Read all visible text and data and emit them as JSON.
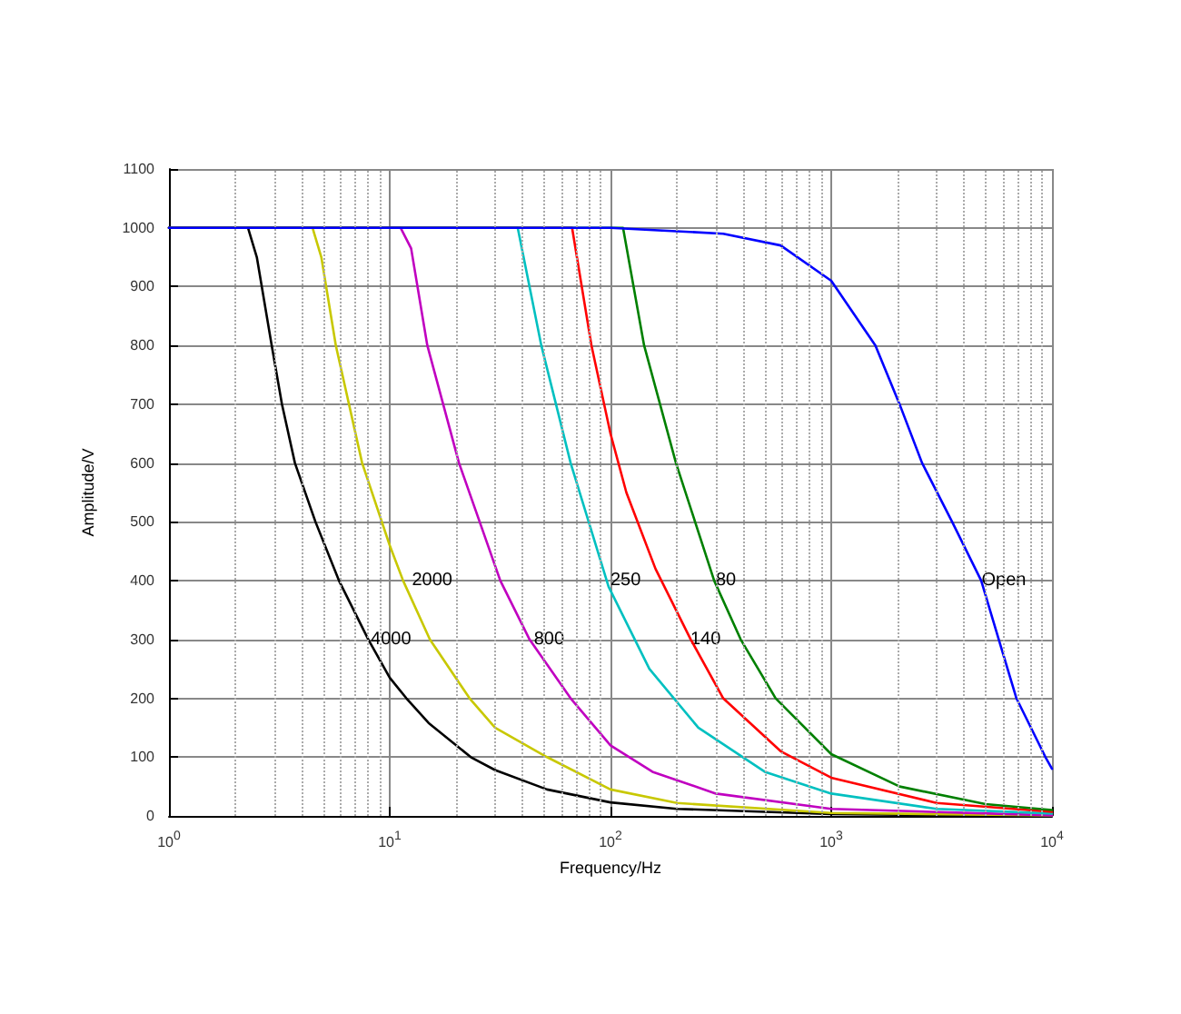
{
  "chart_data": {
    "type": "line",
    "xlabel": "Frequency/Hz",
    "ylabel": "Amplitude/V",
    "log": "x",
    "grid": true,
    "marker": "none",
    "line_style": "solid",
    "xlim": [
      1,
      10000
    ],
    "xticks": [
      {
        "value": 1,
        "label": "10$^{0}$"
      },
      {
        "value": 10,
        "label": "10$^{1}$"
      },
      {
        "value": 100,
        "label": "10$^{2}$"
      },
      {
        "value": 1000,
        "label": "10$^{3}$"
      },
      {
        "value": 10000,
        "label": "10$^{4}$"
      }
    ],
    "ylim": [
      0,
      1100
    ],
    "yticks": [
      0,
      100,
      200,
      300,
      400,
      500,
      600,
      700,
      800,
      900,
      1000,
      1100
    ],
    "series": [
      {
        "color": "#000000",
        "x": [
          1,
          2.28,
          2.5,
          2.92,
          3.25,
          3.72,
          4.61,
          5.89,
          8,
          10,
          11.9,
          15,
          23.3,
          30,
          51.6,
          100,
          200,
          1000,
          10000
        ],
        "values": [
          1000,
          1000,
          950,
          800,
          700,
          600,
          500,
          400,
          300,
          235,
          200,
          158,
          100,
          78,
          45,
          23,
          12,
          3,
          0
        ]
      },
      {
        "color": "#c8c800",
        "x": [
          1,
          4.47,
          4.9,
          5.7,
          7.5,
          10,
          11.5,
          15.2,
          23,
          30,
          51.6,
          100,
          200,
          1000,
          10000
        ],
        "values": [
          1000,
          1000,
          950,
          800,
          600,
          460,
          400,
          300,
          200,
          150,
          100,
          45,
          22,
          5,
          1
        ]
      },
      {
        "color": "#c000c0",
        "x": [
          1,
          11.2,
          12.5,
          14.8,
          20.6,
          31.7,
          43,
          66,
          100,
          155,
          300,
          1000,
          10000
        ],
        "values": [
          1000,
          1000,
          965,
          800,
          600,
          400,
          300,
          200,
          120,
          75,
          38,
          12,
          1
        ]
      },
      {
        "color": "#00c0c0",
        "x": [
          1,
          38,
          48.6,
          66,
          98,
          150,
          250,
          500,
          1000,
          3000,
          10000
        ],
        "values": [
          1000,
          1000,
          800,
          600,
          390,
          250,
          150,
          75,
          38,
          12,
          4
        ]
      },
      {
        "color": "#ff0000",
        "x": [
          1,
          67,
          82,
          100,
          118,
          160,
          231,
          324,
          590,
          1000,
          3000,
          10000
        ],
        "values": [
          1000,
          1000,
          800,
          650,
          550,
          420,
          300,
          200,
          110,
          65,
          22,
          7
        ]
      },
      {
        "color": "#008000",
        "x": [
          1,
          114,
          142,
          198,
          295,
          389,
          560,
          1000,
          2040,
          5000,
          10000
        ],
        "values": [
          1000,
          1000,
          800,
          600,
          400,
          300,
          200,
          105,
          50,
          20,
          10
        ]
      },
      {
        "color": "#0000ff",
        "x": [
          1,
          100,
          324,
          590,
          1000,
          1585,
          2040,
          2580,
          3530,
          4780,
          5740,
          6900,
          9340,
          10000
        ],
        "values": [
          1000,
          1000,
          990,
          970,
          910,
          800,
          700,
          600,
          500,
          400,
          300,
          200,
          100,
          80
        ]
      }
    ],
    "annotations": [
      {
        "text": "4000",
        "x": 8.2,
        "y": 300
      },
      {
        "text": "2000",
        "x": 12.6,
        "y": 400
      },
      {
        "text": "800",
        "x": 45,
        "y": 300
      },
      {
        "text": "250",
        "x": 100,
        "y": 400
      },
      {
        "text": "140",
        "x": 230,
        "y": 300
      },
      {
        "text": "80",
        "x": 300,
        "y": 400
      },
      {
        "text": "Open",
        "x": 4800,
        "y": 400
      }
    ]
  }
}
